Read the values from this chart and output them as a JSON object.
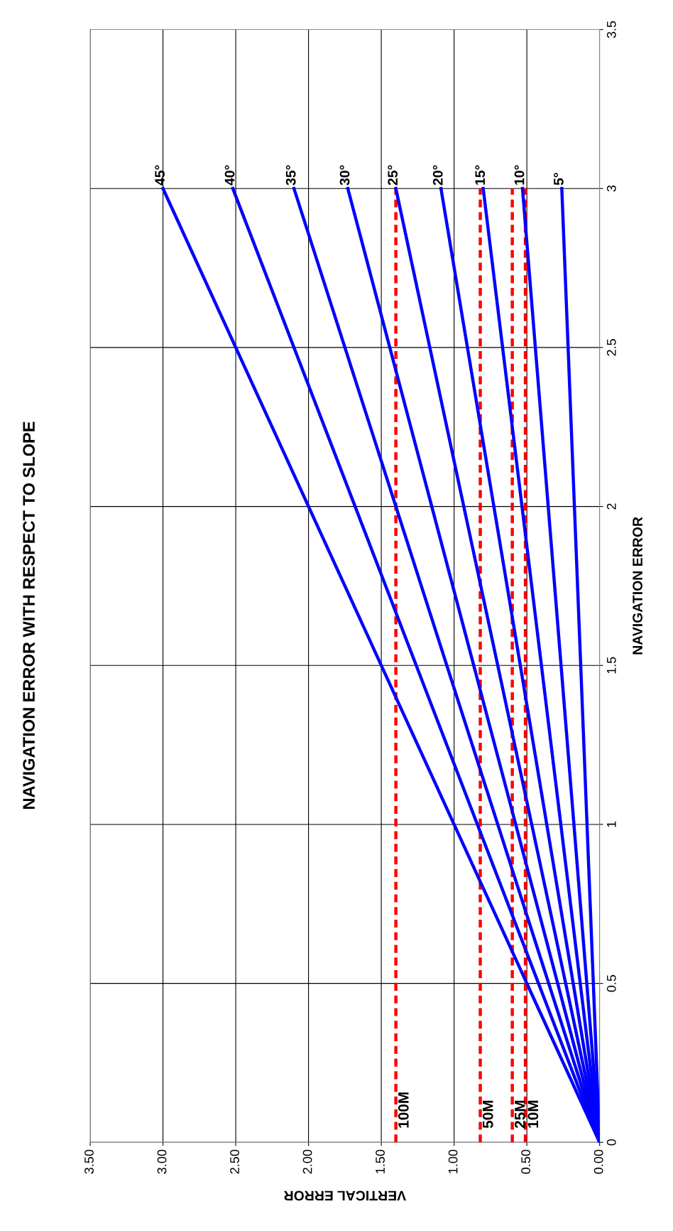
{
  "chart_data": {
    "type": "line",
    "title": "NAVIGATION ERROR WITH RESPECT TO SLOPE",
    "xlabel": "VERTICAL ERROR",
    "ylabel": "NAVIGATION ERROR",
    "xlim": [
      3.5,
      0
    ],
    "xticks": [
      {
        "value": 3.5,
        "label": "3.50"
      },
      {
        "value": 3,
        "label": "3.00"
      },
      {
        "value": 2.5,
        "label": "2.50"
      },
      {
        "value": 2,
        "label": "2.00"
      },
      {
        "value": 1.5,
        "label": "1.50"
      },
      {
        "value": 1,
        "label": "1.00"
      },
      {
        "value": 0.5,
        "label": "0.50"
      },
      {
        "value": 0,
        "label": "0.00"
      }
    ],
    "ylim": [
      0,
      3.5
    ],
    "yticks": [
      0,
      0.5,
      1,
      1.5,
      2,
      2.5,
      3,
      3.5
    ],
    "grid": true,
    "marker": "none",
    "line_style": "solid",
    "series": [
      {
        "name": "100M",
        "color": "#ff0000",
        "line_style": "dashed",
        "x": [
          1.4,
          1.4
        ],
        "values": [
          0,
          3
        ]
      },
      {
        "name": "50M",
        "color": "#ff0000",
        "line_style": "dashed",
        "x": [
          0.82,
          0.82
        ],
        "values": [
          0,
          3
        ]
      },
      {
        "name": "25M",
        "color": "#ff0000",
        "line_style": "dashed",
        "x": [
          0.6,
          0.6
        ],
        "values": [
          0,
          3
        ]
      },
      {
        "name": "10M",
        "color": "#ff0000",
        "line_style": "dashed",
        "x": [
          0.51,
          0.51
        ],
        "values": [
          0,
          3
        ]
      },
      {
        "name": "45°",
        "color": "#0000ff",
        "x": [
          0,
          3.0
        ],
        "values": [
          0,
          3
        ]
      },
      {
        "name": "40°",
        "color": "#0000ff",
        "x": [
          0,
          2.52
        ],
        "values": [
          0,
          3
        ]
      },
      {
        "name": "35°",
        "color": "#0000ff",
        "x": [
          0,
          2.1
        ],
        "values": [
          0,
          3
        ]
      },
      {
        "name": "30°",
        "color": "#0000ff",
        "x": [
          0,
          1.73
        ],
        "values": [
          0,
          3
        ]
      },
      {
        "name": "25°",
        "color": "#0000ff",
        "x": [
          0,
          1.4
        ],
        "values": [
          0,
          3
        ]
      },
      {
        "name": "20°",
        "color": "#0000ff",
        "x": [
          0,
          1.09
        ],
        "values": [
          0,
          3
        ]
      },
      {
        "name": "15°",
        "color": "#0000ff",
        "x": [
          0,
          0.8
        ],
        "values": [
          0,
          3
        ]
      },
      {
        "name": "10°",
        "color": "#0000ff",
        "x": [
          0,
          0.53
        ],
        "values": [
          0,
          3
        ]
      },
      {
        "name": "5°",
        "color": "#0000ff",
        "x": [
          0,
          0.26
        ],
        "values": [
          0,
          3
        ]
      }
    ]
  }
}
